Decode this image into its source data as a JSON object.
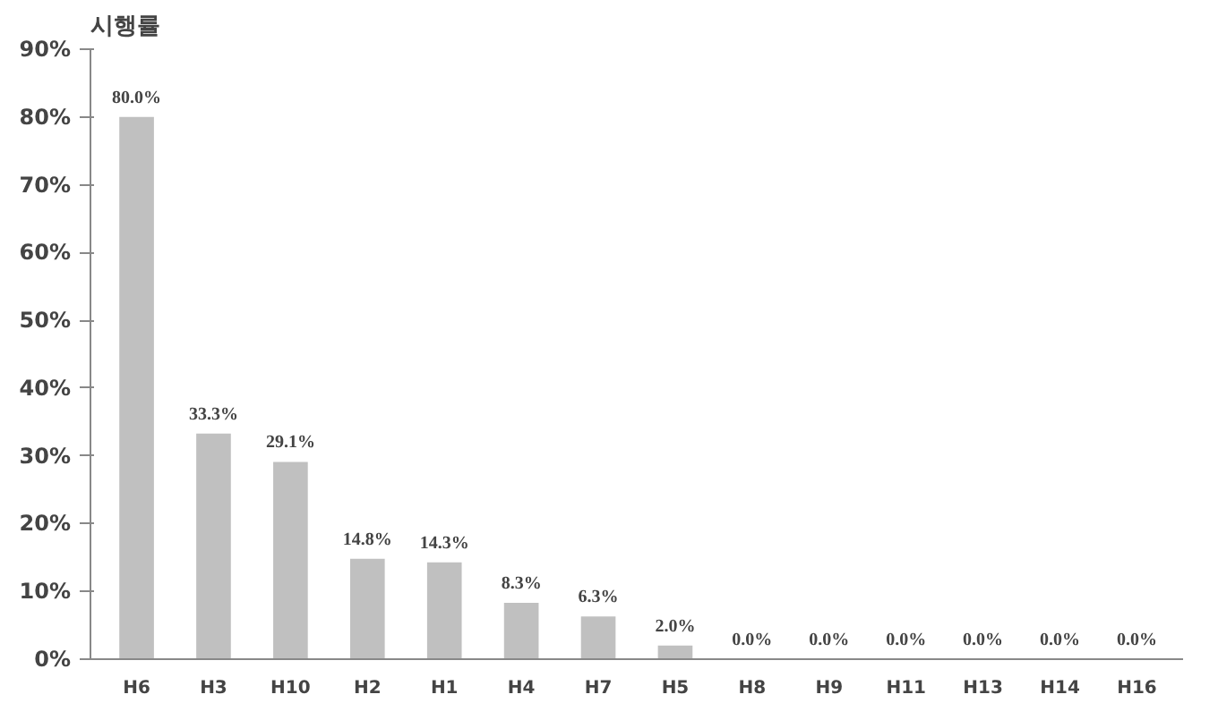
{
  "chart_data": {
    "type": "bar",
    "title": "시행률",
    "categories": [
      "H6",
      "H3",
      "H10",
      "H2",
      "H1",
      "H4",
      "H7",
      "H5",
      "H8",
      "H9",
      "H11",
      "H13",
      "H14",
      "H16"
    ],
    "values": [
      80.0,
      33.3,
      29.1,
      14.8,
      14.3,
      8.3,
      6.3,
      2.0,
      0.0,
      0.0,
      0.0,
      0.0,
      0.0,
      0.0
    ],
    "value_labels": [
      "80.0%",
      "33.3%",
      "29.1%",
      "14.8%",
      "14.3%",
      "8.3%",
      "6.3%",
      "2.0%",
      "0.0%",
      "0.0%",
      "0.0%",
      "0.0%",
      "0.0%",
      "0.0%"
    ],
    "color": "#c0c0c0",
    "ylim": [
      0,
      90
    ],
    "yticks": [
      {
        "value": 0,
        "label": "0%"
      },
      {
        "value": 10,
        "label": "10%"
      },
      {
        "value": 20,
        "label": "20%"
      },
      {
        "value": 30,
        "label": "30%"
      },
      {
        "value": 40,
        "label": "40%"
      },
      {
        "value": 50,
        "label": "50%"
      },
      {
        "value": 60,
        "label": "60%"
      },
      {
        "value": 70,
        "label": "70%"
      },
      {
        "value": 80,
        "label": "80%"
      },
      {
        "value": 90,
        "label": "90%"
      }
    ],
    "grid": false
  }
}
